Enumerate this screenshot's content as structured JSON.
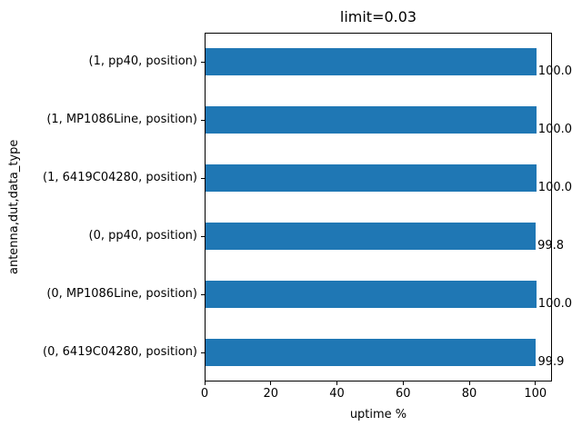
{
  "chart_data": {
    "type": "bar",
    "orientation": "horizontal",
    "title": "limit=0.03",
    "xlabel": "uptime %",
    "ylabel": "antenna,dut,data_type",
    "categories": [
      "(1, pp40, position)",
      "(1, MP1086Line, position)",
      "(1, 6419C04280, position)",
      "(0, pp40, position)",
      "(0, MP1086Line, position)",
      "(0, 6419C04280, position)"
    ],
    "values": [
      100.0,
      100.0,
      100.0,
      99.8,
      100.0,
      99.9
    ],
    "value_labels": [
      "100.0",
      "100.0",
      "100.0",
      "99.8",
      "100.0",
      "99.9"
    ],
    "xlim": [
      0,
      105
    ],
    "xticks": [
      0,
      20,
      40,
      60,
      80,
      100
    ],
    "bar_color": "#1f77b4",
    "grid": false,
    "legend": null
  }
}
